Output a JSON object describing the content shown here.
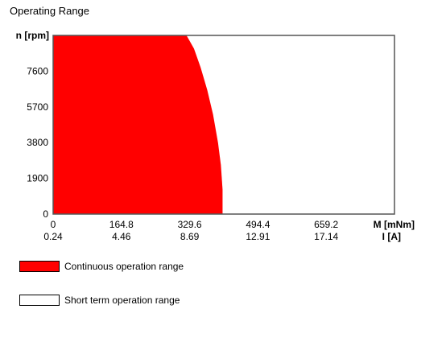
{
  "chart_data": {
    "type": "area",
    "title": "Operating Range",
    "ylabel": "n [rpm]",
    "xlabel": "M [mNm]",
    "x2label": "I [A]",
    "y_ticks": [
      0,
      1900,
      3800,
      5700,
      7600
    ],
    "ylim": [
      0,
      9500
    ],
    "x_ticks": [
      0,
      164.8,
      329.6,
      494.4,
      659.2
    ],
    "x_tick_labels": [
      "0",
      "164.8",
      "329.6",
      "494.4",
      "659.2"
    ],
    "x2_tick_labels": [
      "0.24",
      "4.46",
      "8.69",
      "12.91",
      "17.14"
    ],
    "xlim": [
      0,
      824
    ],
    "series": [
      {
        "name": "Continuous operation range",
        "color": "#ff0000",
        "boundary": [
          {
            "x": 0,
            "y": 9500
          },
          {
            "x": 322,
            "y": 9500
          },
          {
            "x": 340,
            "y": 8800
          },
          {
            "x": 356,
            "y": 7800
          },
          {
            "x": 372,
            "y": 6600
          },
          {
            "x": 386,
            "y": 5300
          },
          {
            "x": 398,
            "y": 3800
          },
          {
            "x": 405,
            "y": 2600
          },
          {
            "x": 409,
            "y": 1300
          },
          {
            "x": 409,
            "y": 0
          }
        ]
      }
    ],
    "legend": [
      {
        "label": "Continuous operation range",
        "fill": "#ff0000"
      },
      {
        "label": "Short term operation range",
        "fill": "#ffffff"
      }
    ]
  }
}
